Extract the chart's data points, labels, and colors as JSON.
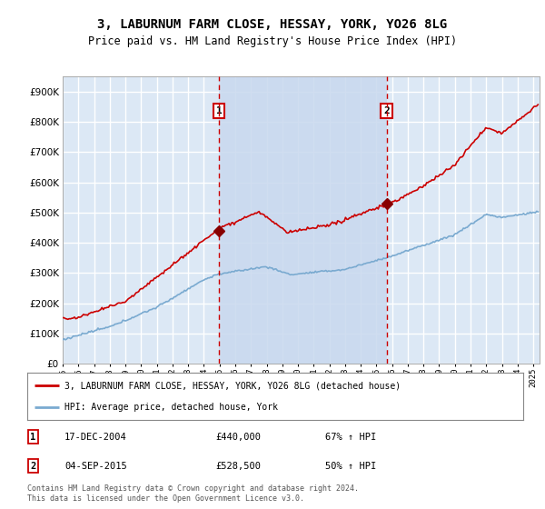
{
  "title": "3, LABURNUM FARM CLOSE, HESSAY, YORK, YO26 8LG",
  "subtitle": "Price paid vs. HM Land Registry's House Price Index (HPI)",
  "ylim": [
    0,
    950000
  ],
  "yticks": [
    0,
    100000,
    200000,
    300000,
    400000,
    500000,
    600000,
    700000,
    800000,
    900000
  ],
  "xlim_start": 1995.0,
  "xlim_end": 2025.4,
  "sale1_x": 2004.96,
  "sale1_y": 440000,
  "sale1_label": "1",
  "sale1_date": "17-DEC-2004",
  "sale1_price": "£440,000",
  "sale1_hpi": "67% ↑ HPI",
  "sale2_x": 2015.67,
  "sale2_y": 528500,
  "sale2_label": "2",
  "sale2_date": "04-SEP-2015",
  "sale2_price": "£528,500",
  "sale2_hpi": "50% ↑ HPI",
  "legend_property": "3, LABURNUM FARM CLOSE, HESSAY, YORK, YO26 8LG (detached house)",
  "legend_hpi": "HPI: Average price, detached house, York",
  "footer": "Contains HM Land Registry data © Crown copyright and database right 2024.\nThis data is licensed under the Open Government Licence v3.0.",
  "plot_bg": "#dce8f5",
  "shade_color": "#c8d8ee",
  "grid_color": "#ffffff",
  "property_line_color": "#cc0000",
  "hpi_line_color": "#7aaad0",
  "sale_marker_color": "#880000",
  "dashed_line_color": "#cc0000"
}
